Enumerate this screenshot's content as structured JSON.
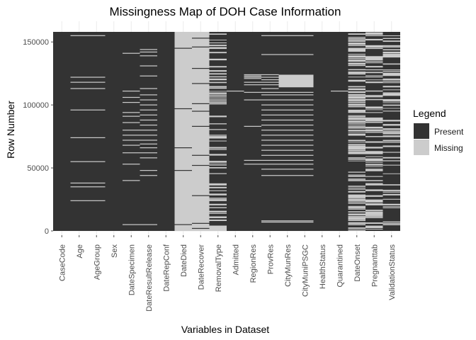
{
  "chart_data": {
    "type": "heatmap",
    "title": "Missingness Map of DOH Case Information",
    "xlabel": "Variables in Dataset",
    "ylabel": "Row Number",
    "ylim": [
      0,
      158000
    ],
    "y_ticks": [
      0,
      50000,
      100000,
      150000
    ],
    "y_tick_labels": [
      "0",
      "50000",
      "100000",
      "150000"
    ],
    "grid": true,
    "legend": {
      "title": "Legend",
      "placement": "right",
      "entries": [
        {
          "label": "Present",
          "color": "#333333"
        },
        {
          "label": "Missing",
          "color": "#cccccc"
        }
      ]
    },
    "variables": [
      "CaseCode",
      "Age",
      "AgeGroup",
      "Sex",
      "DateSpecimen",
      "DateResultRelease",
      "DateRepConf",
      "DateDied",
      "DateRecover",
      "RemovalType",
      "Admitted",
      "RegionRes",
      "ProvRes",
      "CityMunRes",
      "CityMuniPSGC",
      "HealthStatus",
      "Quarantined",
      "DateOnset",
      "Pregnanttab",
      "ValidationStatus"
    ],
    "columns": [
      {
        "variable": "CaseCode",
        "base": "present",
        "missing_rows": []
      },
      {
        "variable": "Age",
        "base": "present",
        "missing_rows": [
          24000,
          35000,
          38000,
          55000,
          74000,
          96000,
          113000,
          118000,
          122000,
          155000
        ]
      },
      {
        "variable": "AgeGroup",
        "base": "present",
        "missing_rows": [
          24000,
          35000,
          38000,
          55000,
          74000,
          96000,
          113000,
          118000,
          122000,
          155000
        ]
      },
      {
        "variable": "Sex",
        "base": "present",
        "missing_rows": []
      },
      {
        "variable": "DateSpecimen",
        "base": "present",
        "missing_rows": [
          5000,
          40000,
          53000,
          62000,
          68000,
          72000,
          76000,
          80000,
          86000,
          91000,
          94000,
          102000,
          106000,
          111000,
          141000
        ]
      },
      {
        "variable": "DateResultRelease",
        "base": "present",
        "missing_rows": [
          5000,
          44000,
          48000,
          58000,
          62000,
          66000,
          69000,
          72000,
          76000,
          80000,
          84000,
          88000,
          92000,
          96000,
          100000,
          104000,
          108000,
          113000,
          123000,
          131000,
          139000,
          142000,
          144000
        ]
      },
      {
        "variable": "DateRepConf",
        "base": "present",
        "missing_rows": []
      },
      {
        "variable": "DateDied",
        "base": "missing",
        "present_rows": [
          5000,
          48000,
          66000,
          97000,
          145000
        ]
      },
      {
        "variable": "DateRecover",
        "base": "missing",
        "present_rows": [
          2000,
          6000,
          28000,
          52000,
          60000,
          83000,
          95000,
          101000,
          117000,
          129000,
          146000,
          153000
        ]
      },
      {
        "variable": "RemovalType",
        "base": "mixed",
        "missing_fraction": 0.45,
        "seed": 3
      },
      {
        "variable": "Admitted",
        "base": "present",
        "missing_rows": [
          111000
        ]
      },
      {
        "variable": "RegionRes",
        "base": "present",
        "missing_rows": [
          53000,
          56000,
          83000,
          104000,
          110000,
          116000,
          118000,
          121000,
          122000,
          123000,
          124000
        ]
      },
      {
        "variable": "ProvRes",
        "base": "present",
        "missing_rows": [
          7000,
          8000,
          44000,
          49000,
          53000,
          56000,
          60000,
          64000,
          68000,
          72000,
          76000,
          80000,
          84000,
          88000,
          92000,
          96000,
          100000,
          104000,
          108000,
          110000,
          113000,
          116000,
          118000,
          120000,
          122000,
          124000,
          140000,
          155000
        ]
      },
      {
        "variable": "CityMunRes",
        "base": "present",
        "missing_rows": [
          7000,
          8000,
          44000,
          49000,
          53000,
          56000,
          60000,
          64000,
          68000,
          72000,
          76000,
          80000,
          84000,
          88000,
          92000,
          96000,
          100000,
          104000,
          108000,
          110000,
          140000,
          155000
        ],
        "missing_ranges": [
          [
            114000,
            124000
          ]
        ]
      },
      {
        "variable": "CityMuniPSGC",
        "base": "present",
        "missing_rows": [
          7000,
          8000,
          44000,
          49000,
          53000,
          56000,
          60000,
          64000,
          68000,
          72000,
          76000,
          80000,
          84000,
          88000,
          92000,
          96000,
          100000,
          104000,
          108000,
          110000,
          140000,
          155000
        ],
        "missing_ranges": [
          [
            114000,
            124000
          ]
        ]
      },
      {
        "variable": "HealthStatus",
        "base": "present",
        "missing_rows": []
      },
      {
        "variable": "Quarantined",
        "base": "present",
        "missing_rows": [
          111000
        ]
      },
      {
        "variable": "DateOnset",
        "base": "mixed",
        "missing_fraction": 0.6,
        "seed": 7
      },
      {
        "variable": "Pregnanttab",
        "base": "mixed",
        "missing_fraction": 0.5,
        "seed": 11
      },
      {
        "variable": "ValidationStatus",
        "base": "mixed",
        "missing_fraction": 0.35,
        "seed": 19
      }
    ]
  }
}
